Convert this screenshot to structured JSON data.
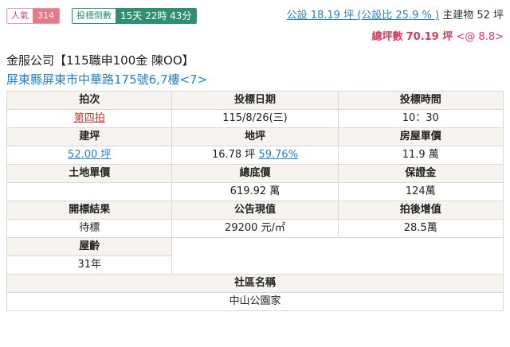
{
  "badges": {
    "popularity_label": "人氣",
    "popularity_value": "314",
    "countdown_label": "投標倒數",
    "countdown_value": "15天 22時 43分"
  },
  "area": {
    "public_area": "公設 18.19 坪 (公設比 25.9 % )",
    "main_building": "主建物 52 坪",
    "total_label": "總坪數",
    "total_value": "70.19 坪",
    "unit_price_note": "<@ 8.8>"
  },
  "case": {
    "title": "金服公司【115職申100金 陳OO】",
    "address": "屏東縣屏東市中華路175號6,7樓<7>"
  },
  "table": {
    "round_label": "拍次",
    "round_value": "第四拍",
    "date_label": "投標日期",
    "date_value": "115/8/26(三)",
    "time_label": "投標時間",
    "time_value": "10：30",
    "building_area_label": "建坪",
    "building_area_value": "52.00 坪",
    "land_area_label": "地坪",
    "land_area_value": "16.78 坪",
    "land_area_pct": "59.76%",
    "house_unit_price_label": "房屋單價",
    "house_unit_price_value": "11.9 萬",
    "land_unit_price_label": "土地單價",
    "land_unit_price_value": "",
    "base_price_label": "總底價",
    "base_price_value": "619.92 萬",
    "deposit_label": "保證金",
    "deposit_value": "124萬",
    "result_label": "開標結果",
    "result_value": "待標",
    "announced_value_label": "公告現值",
    "announced_value_value": "29200 元/㎡",
    "post_auction_label": "拍後增值",
    "post_auction_value": "28.5萬",
    "age_label": "屋齡",
    "age_value": "31年",
    "community_label": "社區名稱",
    "community_value": "中山公園家"
  }
}
